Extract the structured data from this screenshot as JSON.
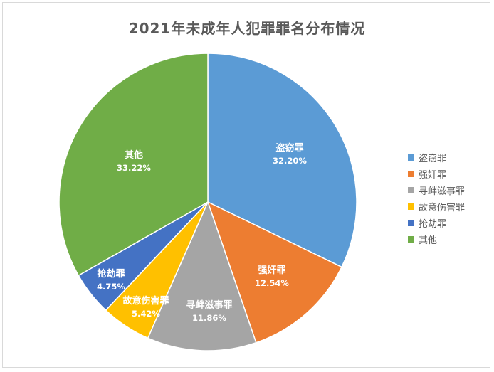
{
  "chart_data": {
    "type": "pie",
    "title": "2021年未成年人犯罪罪名分布情况",
    "categories": [
      "盗窃罪",
      "强奸罪",
      "寻衅滋事罪",
      "故意伤害罪",
      "抢劫罪",
      "其他"
    ],
    "values": [
      32.2,
      12.54,
      11.86,
      5.42,
      4.75,
      33.22
    ],
    "data_labels": [
      "32.20%",
      "12.54%",
      "11.86%",
      "5.42%",
      "4.75%",
      "33.22%"
    ],
    "colors": [
      "#5b9bd5",
      "#ed7d31",
      "#a5a5a5",
      "#ffc000",
      "#4472c4",
      "#70ad47"
    ],
    "legend": "right",
    "start_angle": "12 o'clock",
    "direction": "clockwise"
  }
}
